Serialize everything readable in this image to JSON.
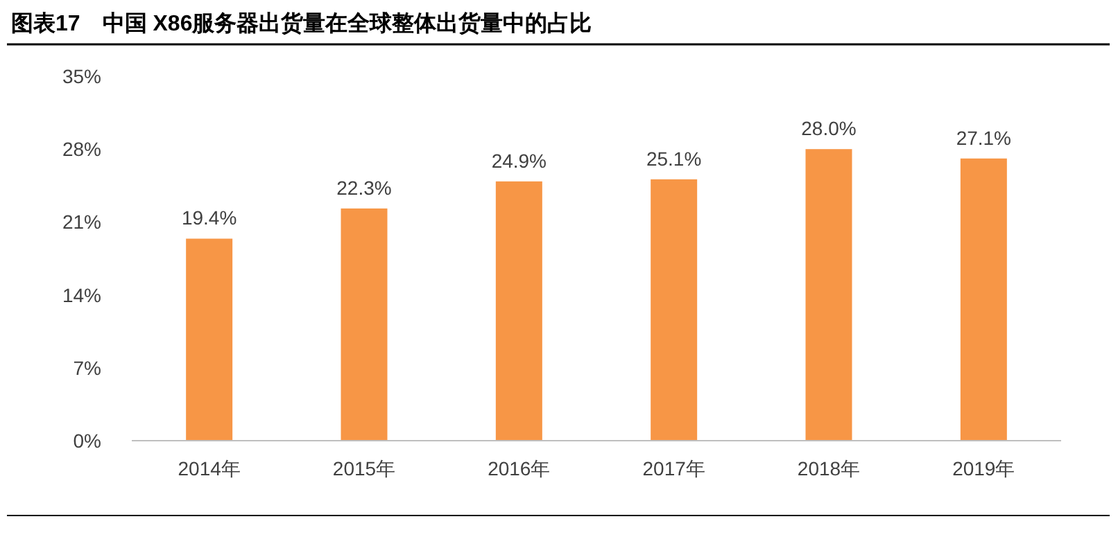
{
  "chart_data": {
    "type": "bar",
    "title": "图表17　中国 X86服务器出货量在全球整体出货量中的占比",
    "categories": [
      "2014年",
      "2015年",
      "2016年",
      "2017年",
      "2018年",
      "2019年"
    ],
    "values": [
      19.4,
      22.3,
      24.9,
      25.1,
      28.0,
      27.1
    ],
    "value_labels": [
      "19.4%",
      "22.3%",
      "24.9%",
      "25.1%",
      "28.0%",
      "27.1%"
    ],
    "color": "#f79646",
    "ylim": [
      0,
      35
    ],
    "yticks": [
      {
        "value": 0,
        "label": "0%"
      },
      {
        "value": 7,
        "label": "7%"
      },
      {
        "value": 14,
        "label": "14%"
      },
      {
        "value": 21,
        "label": "21%"
      },
      {
        "value": 28,
        "label": "28%"
      },
      {
        "value": 35,
        "label": "35%"
      }
    ],
    "grid": false
  }
}
